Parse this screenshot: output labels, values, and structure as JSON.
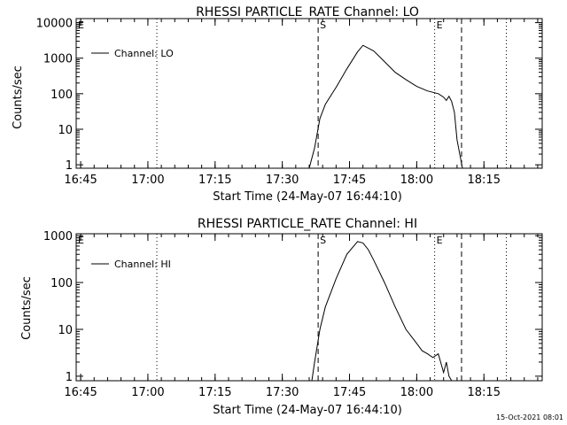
{
  "footer": {
    "timestamp": "15-Oct-2021 08:01"
  },
  "chart_data": [
    {
      "type": "line",
      "title": "RHESSI PARTICLE_RATE Channel: LO",
      "xlabel": "Start Time (24-May-07 16:44:10)",
      "ylabel": "Counts/sec",
      "xlim": [
        16.7333,
        18.4667
      ],
      "ylim": [
        0.8,
        13000
      ],
      "xticks": [
        16.75,
        17.0,
        17.25,
        17.5,
        17.75,
        18.0,
        18.25
      ],
      "xtick_labels": [
        "16:45",
        "17:00",
        "17:15",
        "17:30",
        "17:45",
        "18:00",
        "18:15"
      ],
      "yticks": [
        1,
        10,
        100,
        1000,
        10000
      ],
      "ytick_labels": [
        "1",
        "10",
        "100",
        "1000",
        "10000"
      ],
      "legend": {
        "label": "Channel: LO",
        "placement": "top-left"
      },
      "markers": [
        {
          "x": 16.7333,
          "style": "dotted",
          "label": "E"
        },
        {
          "x": 17.0333,
          "style": "dotted",
          "label": ""
        },
        {
          "x": 17.6333,
          "style": "dashed",
          "label": "S"
        },
        {
          "x": 18.0667,
          "style": "dotted",
          "label": "E"
        },
        {
          "x": 18.1667,
          "style": "dashed",
          "label": ""
        },
        {
          "x": 18.3333,
          "style": "dotted",
          "label": ""
        }
      ],
      "series": [
        {
          "name": "Channel: LO",
          "x": [
            17.6,
            17.62,
            17.64,
            17.66,
            17.7,
            17.74,
            17.78,
            17.8,
            17.84,
            17.88,
            17.92,
            17.96,
            18.0,
            18.04,
            18.08,
            18.1,
            18.11,
            18.12,
            18.13,
            18.14,
            18.15,
            18.17
          ],
          "y": [
            0.8,
            3,
            20,
            50,
            150,
            500,
            1500,
            2300,
            1600,
            800,
            400,
            250,
            160,
            120,
            100,
            80,
            65,
            85,
            60,
            30,
            5,
            0.8
          ]
        }
      ]
    },
    {
      "type": "line",
      "title": "RHESSI PARTICLE_RATE Channel: HI",
      "xlabel": "Start Time (24-May-07 16:44:10)",
      "ylabel": "Counts/sec",
      "xlim": [
        16.7333,
        18.4667
      ],
      "ylim": [
        0.8,
        1100
      ],
      "xticks": [
        16.75,
        17.0,
        17.25,
        17.5,
        17.75,
        18.0,
        18.25
      ],
      "xtick_labels": [
        "16:45",
        "17:00",
        "17:15",
        "17:30",
        "17:45",
        "18:00",
        "18:15"
      ],
      "yticks": [
        1,
        10,
        100,
        1000
      ],
      "ytick_labels": [
        "1",
        "10",
        "100",
        "1000"
      ],
      "legend": {
        "label": "Channel: HI",
        "placement": "top-left"
      },
      "markers": [
        {
          "x": 16.7333,
          "style": "dotted",
          "label": "E"
        },
        {
          "x": 17.0333,
          "style": "dotted",
          "label": ""
        },
        {
          "x": 17.6333,
          "style": "dashed",
          "label": "S"
        },
        {
          "x": 18.0667,
          "style": "dotted",
          "label": "E"
        },
        {
          "x": 18.1667,
          "style": "dashed",
          "label": ""
        },
        {
          "x": 18.3333,
          "style": "dotted",
          "label": ""
        }
      ],
      "series": [
        {
          "name": "Channel: HI",
          "x": [
            17.61,
            17.62,
            17.64,
            17.66,
            17.7,
            17.74,
            17.78,
            17.8,
            17.82,
            17.84,
            17.88,
            17.92,
            17.96,
            18.0,
            18.02,
            18.04,
            18.06,
            18.08,
            18.1,
            18.11,
            18.12,
            18.13
          ],
          "y": [
            0.8,
            2,
            10,
            30,
            120,
            400,
            750,
            700,
            500,
            300,
            100,
            30,
            10,
            5,
            3.5,
            3,
            2.5,
            3,
            1.2,
            2,
            1,
            0.8
          ]
        }
      ]
    }
  ]
}
